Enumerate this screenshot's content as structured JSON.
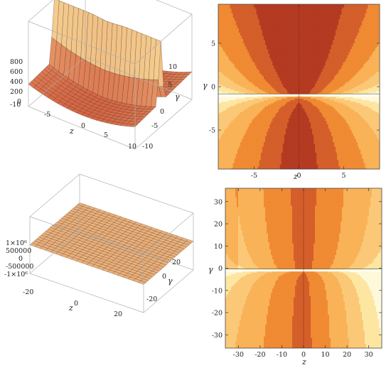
{
  "colors": {
    "contour_scale": [
      "#fff9dc",
      "#fde6a2",
      "#fbc878",
      "#f9b257",
      "#f08a33",
      "#d45f2a",
      "#b43a22"
    ],
    "surface_low": "#c8321e",
    "surface_high": "#fbe6a2",
    "wall": "#8e8a80",
    "mesh": "#3a2a1a",
    "box": "#b0b0b0"
  },
  "chart_data": [
    {
      "id": "top-left",
      "type": "surface3d",
      "xlabel": "z",
      "ylabel": "γ",
      "xticks": [
        "-10",
        "-5",
        "0",
        "5",
        "10"
      ],
      "yticks": [
        "-10",
        "-5",
        "0",
        "5",
        "10"
      ],
      "zticks": [
        "800",
        "600",
        "400",
        "200",
        "0"
      ],
      "xlim": [
        -10,
        10
      ],
      "ylim": [
        -10,
        10
      ],
      "zlim": [
        0,
        800
      ]
    },
    {
      "id": "top-right",
      "type": "heatmap",
      "subtype": "contour",
      "xlabel": "z",
      "ylabel": "γ",
      "xticks": [
        "-5",
        "0",
        "5"
      ],
      "xtick_values": [
        -5,
        0,
        5
      ],
      "yticks": [
        "5",
        "0",
        "-5"
      ],
      "ytick_values": [
        5,
        0,
        -5
      ],
      "xlim": [
        -9,
        9
      ],
      "ylim": [
        -9.5,
        9.5
      ],
      "singular_line_gamma": -1
    },
    {
      "id": "bottom-left",
      "type": "surface3d",
      "xlabel": "z",
      "ylabel": "γ",
      "xticks": [
        "-20",
        "0",
        "20"
      ],
      "yticks": [
        "-20",
        "0",
        "20"
      ],
      "zticks": [
        "1×10⁶",
        "500000",
        "0",
        "-500000",
        "-1×10⁶"
      ],
      "xlim": [
        -30,
        30
      ],
      "ylim": [
        -30,
        30
      ],
      "zlim": [
        -1000000,
        1000000
      ]
    },
    {
      "id": "bottom-right",
      "type": "heatmap",
      "subtype": "contour",
      "xlabel": "z",
      "ylabel": "γ",
      "xticks": [
        "-30",
        "-20",
        "-10",
        "0",
        "10",
        "20",
        "30"
      ],
      "xtick_values": [
        -30,
        -20,
        -10,
        0,
        10,
        20,
        30
      ],
      "yticks": [
        "30",
        "20",
        "10",
        "0",
        "-10",
        "-20",
        "-30"
      ],
      "ytick_values": [
        30,
        20,
        10,
        0,
        -10,
        -20,
        -30
      ],
      "xlim": [
        -36,
        36
      ],
      "ylim": [
        -36,
        36
      ],
      "singular_line_gamma": -1
    }
  ]
}
